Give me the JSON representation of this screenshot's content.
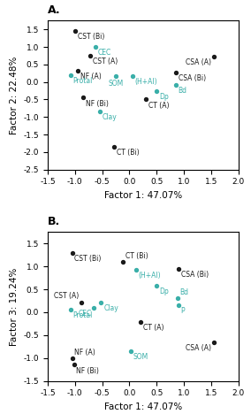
{
  "chart_data": [
    {
      "type": "scatter",
      "title": "A.",
      "x_label": "Factor 1: 47.07%",
      "y_label": "Factor 2: 22.48%",
      "xlim": [
        -1.5,
        2.0
      ],
      "ylim": [
        -2.5,
        1.75
      ],
      "xticks": [
        -1.5,
        -1.0,
        -0.5,
        0.0,
        0.5,
        1.0,
        1.5,
        2.0
      ],
      "yticks": [
        -2.5,
        -2.0,
        -1.5,
        -1.0,
        -0.5,
        0.0,
        0.5,
        1.0,
        1.5
      ],
      "grid": false,
      "series": [
        {
          "color": "#1a1a1a",
          "labels": [
            "CST (Bi)",
            "CST (A)",
            "NF (A)",
            "NF (Bi)",
            "CT (A)",
            "CT (Bi)",
            "CSA (A)",
            "CSA (Bi)"
          ],
          "x": [
            -1.0,
            -0.72,
            -0.95,
            -0.85,
            0.3,
            -0.28,
            1.55,
            0.85
          ],
          "values": [
            1.45,
            0.75,
            0.32,
            -0.45,
            -0.5,
            -1.85,
            0.72,
            0.28
          ]
        },
        {
          "color": "#3aafa9",
          "labels": [
            "CEC",
            "Protal",
            "SOM",
            "(H+Al)",
            "Clay",
            "Dp",
            "Bd"
          ],
          "x": [
            -0.62,
            -1.08,
            -0.25,
            0.05,
            -0.55,
            0.5,
            0.85
          ],
          "values": [
            1.0,
            0.2,
            0.18,
            0.18,
            -0.85,
            -0.25,
            -0.08
          ]
        }
      ]
    },
    {
      "type": "scatter",
      "title": "B.",
      "x_label": "Factor 1: 47.07%",
      "y_label": "Factor 3: 19.24%",
      "xlim": [
        -1.5,
        2.0
      ],
      "ylim": [
        -1.5,
        1.75
      ],
      "xticks": [
        -1.5,
        -1.0,
        -0.5,
        0.0,
        0.5,
        1.0,
        1.5,
        2.0
      ],
      "yticks": [
        -1.5,
        -1.0,
        -0.5,
        0.0,
        0.5,
        1.0,
        1.5
      ],
      "grid": false,
      "series": [
        {
          "color": "#1a1a1a",
          "labels": [
            "CST (Bi)",
            "CT (Bi)",
            "CST (A)",
            "NF (A)",
            "NF (Bi)",
            "CT (A)",
            "CSA (Bi)",
            "CSA (A)"
          ],
          "x": [
            -1.05,
            -0.12,
            -0.88,
            -1.05,
            -1.02,
            0.2,
            0.9,
            1.55
          ],
          "values": [
            1.3,
            1.1,
            0.22,
            -1.0,
            -1.15,
            -0.22,
            0.95,
            -0.65
          ]
        },
        {
          "color": "#3aafa9",
          "labels": [
            "Clay",
            "CEC",
            "Protal",
            "(H+Al)",
            "Dp",
            "Bd",
            "P",
            "SOM"
          ],
          "x": [
            -0.52,
            -0.65,
            -1.08,
            0.12,
            0.5,
            0.88,
            0.9,
            0.02
          ],
          "values": [
            0.22,
            0.1,
            0.06,
            0.92,
            0.58,
            0.3,
            0.15,
            -0.85
          ]
        }
      ]
    }
  ]
}
